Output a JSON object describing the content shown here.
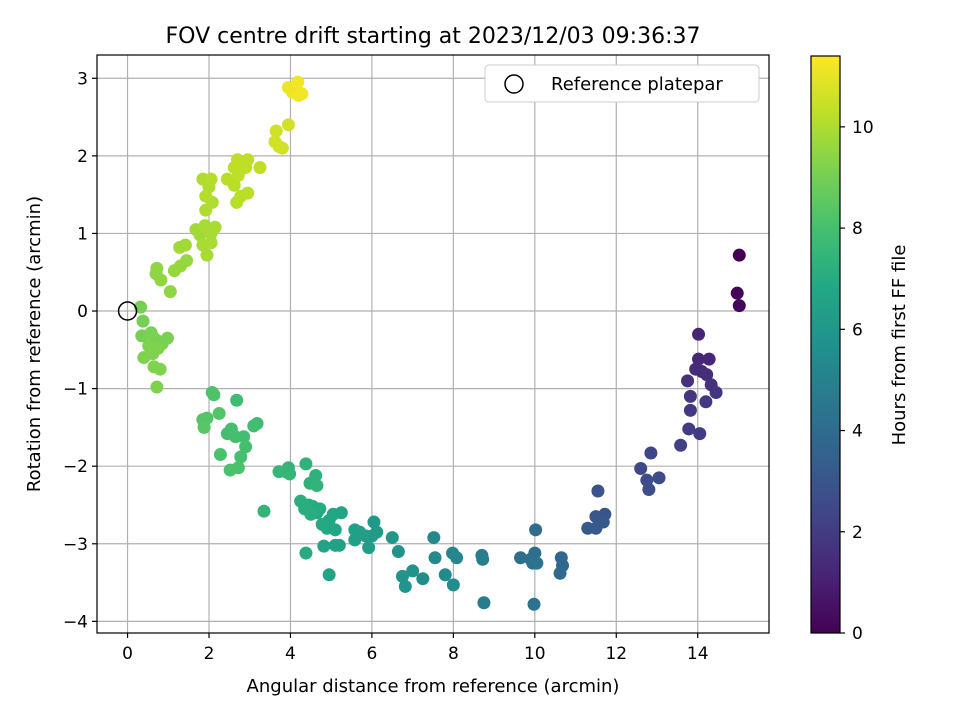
{
  "chart_data": {
    "type": "scatter",
    "title": "FOV centre drift starting at 2023/12/03 09:36:37",
    "xlabel": "Angular distance from reference (arcmin)",
    "ylabel": "Rotation from reference (arcmin)",
    "xlim": [
      -0.75,
      15.75
    ],
    "ylim": [
      -4.15,
      3.3
    ],
    "xticks": [
      0,
      2,
      4,
      6,
      8,
      10,
      12,
      14
    ],
    "yticks": [
      -4,
      -3,
      -2,
      -1,
      0,
      1,
      2,
      3
    ],
    "grid": true,
    "legend": {
      "position": "upper-right",
      "entries": [
        {
          "label": "Reference platepar",
          "marker": "open-circle"
        }
      ]
    },
    "reference_point": {
      "x": 0.0,
      "y": 0.0
    },
    "colorbar": {
      "label": "Hours from first FF file",
      "range": [
        0,
        11.4
      ],
      "ticks": [
        0,
        2,
        4,
        6,
        8,
        10
      ],
      "colormap": "viridis"
    },
    "series": [
      {
        "color_values_in": "hours",
        "points": [
          {
            "x": 15.02,
            "y": 0.72,
            "hours": 0.0
          },
          {
            "x": 14.97,
            "y": 0.23,
            "hours": 0.1
          },
          {
            "x": 15.02,
            "y": 0.07,
            "hours": 0.2
          },
          {
            "x": 14.02,
            "y": -0.3,
            "hours": 1.2
          },
          {
            "x": 14.02,
            "y": -0.62,
            "hours": 1.3
          },
          {
            "x": 14.28,
            "y": -0.62,
            "hours": 1.3
          },
          {
            "x": 13.95,
            "y": -0.75,
            "hours": 1.4
          },
          {
            "x": 14.1,
            "y": -0.78,
            "hours": 1.4
          },
          {
            "x": 14.22,
            "y": -0.82,
            "hours": 1.5
          },
          {
            "x": 13.75,
            "y": -0.9,
            "hours": 1.6
          },
          {
            "x": 14.33,
            "y": -0.95,
            "hours": 1.6
          },
          {
            "x": 14.45,
            "y": -1.05,
            "hours": 1.7
          },
          {
            "x": 13.82,
            "y": -1.1,
            "hours": 1.8
          },
          {
            "x": 14.2,
            "y": -1.17,
            "hours": 1.8
          },
          {
            "x": 13.82,
            "y": -1.28,
            "hours": 1.9
          },
          {
            "x": 13.78,
            "y": -1.52,
            "hours": 2.0
          },
          {
            "x": 14.05,
            "y": -1.58,
            "hours": 2.0
          },
          {
            "x": 13.58,
            "y": -1.73,
            "hours": 2.1
          },
          {
            "x": 12.85,
            "y": -1.83,
            "hours": 2.4
          },
          {
            "x": 12.6,
            "y": -2.03,
            "hours": 2.5
          },
          {
            "x": 12.75,
            "y": -2.18,
            "hours": 2.6
          },
          {
            "x": 13.05,
            "y": -2.15,
            "hours": 2.6
          },
          {
            "x": 12.8,
            "y": -2.3,
            "hours": 2.7
          },
          {
            "x": 11.55,
            "y": -2.32,
            "hours": 2.9
          },
          {
            "x": 11.72,
            "y": -2.62,
            "hours": 3.0
          },
          {
            "x": 11.5,
            "y": -2.65,
            "hours": 3.1
          },
          {
            "x": 11.68,
            "y": -2.72,
            "hours": 3.1
          },
          {
            "x": 11.3,
            "y": -2.8,
            "hours": 3.2
          },
          {
            "x": 11.5,
            "y": -2.8,
            "hours": 3.2
          },
          {
            "x": 10.02,
            "y": -2.82,
            "hours": 4.0
          },
          {
            "x": 10.65,
            "y": -3.18,
            "hours": 3.8
          },
          {
            "x": 10.68,
            "y": -3.28,
            "hours": 3.8
          },
          {
            "x": 10.62,
            "y": -3.38,
            "hours": 3.9
          },
          {
            "x": 9.65,
            "y": -3.18,
            "hours": 4.2
          },
          {
            "x": 9.9,
            "y": -3.2,
            "hours": 4.2
          },
          {
            "x": 10.0,
            "y": -3.12,
            "hours": 4.2
          },
          {
            "x": 9.95,
            "y": -3.25,
            "hours": 4.3
          },
          {
            "x": 10.05,
            "y": -3.25,
            "hours": 4.3
          },
          {
            "x": 9.98,
            "y": -3.78,
            "hours": 4.4
          },
          {
            "x": 8.7,
            "y": -3.15,
            "hours": 4.8
          },
          {
            "x": 8.72,
            "y": -3.2,
            "hours": 4.8
          },
          {
            "x": 8.75,
            "y": -3.76,
            "hours": 4.7
          },
          {
            "x": 7.52,
            "y": -2.92,
            "hours": 5.3
          },
          {
            "x": 7.98,
            "y": -3.12,
            "hours": 5.2
          },
          {
            "x": 8.08,
            "y": -3.18,
            "hours": 5.2
          },
          {
            "x": 7.55,
            "y": -3.18,
            "hours": 5.3
          },
          {
            "x": 7.8,
            "y": -3.4,
            "hours": 5.4
          },
          {
            "x": 7.25,
            "y": -3.45,
            "hours": 5.5
          },
          {
            "x": 8.0,
            "y": -3.53,
            "hours": 5.5
          },
          {
            "x": 6.65,
            "y": -3.1,
            "hours": 5.8
          },
          {
            "x": 7.0,
            "y": -3.35,
            "hours": 5.8
          },
          {
            "x": 6.75,
            "y": -3.42,
            "hours": 5.9
          },
          {
            "x": 6.82,
            "y": -3.55,
            "hours": 5.9
          },
          {
            "x": 6.5,
            "y": -2.92,
            "hours": 6.0
          },
          {
            "x": 6.05,
            "y": -2.72,
            "hours": 6.1
          },
          {
            "x": 6.12,
            "y": -2.85,
            "hours": 6.2
          },
          {
            "x": 6.0,
            "y": -2.9,
            "hours": 6.2
          },
          {
            "x": 5.85,
            "y": -2.9,
            "hours": 6.3
          },
          {
            "x": 5.7,
            "y": -2.85,
            "hours": 6.3
          },
          {
            "x": 5.58,
            "y": -2.82,
            "hours": 6.4
          },
          {
            "x": 5.58,
            "y": -2.95,
            "hours": 6.4
          },
          {
            "x": 5.92,
            "y": -3.05,
            "hours": 6.3
          },
          {
            "x": 5.2,
            "y": -3.02,
            "hours": 6.5
          },
          {
            "x": 5.1,
            "y": -3.02,
            "hours": 6.5
          },
          {
            "x": 4.82,
            "y": -3.03,
            "hours": 6.6
          },
          {
            "x": 4.95,
            "y": -3.4,
            "hours": 6.6
          },
          {
            "x": 5.25,
            "y": -2.6,
            "hours": 6.7
          },
          {
            "x": 5.05,
            "y": -2.62,
            "hours": 6.7
          },
          {
            "x": 4.95,
            "y": -2.7,
            "hours": 6.8
          },
          {
            "x": 4.9,
            "y": -2.8,
            "hours": 6.8
          },
          {
            "x": 5.1,
            "y": -2.82,
            "hours": 6.8
          },
          {
            "x": 4.78,
            "y": -2.75,
            "hours": 6.9
          },
          {
            "x": 4.65,
            "y": -2.6,
            "hours": 6.9
          },
          {
            "x": 4.55,
            "y": -2.52,
            "hours": 7.0
          },
          {
            "x": 4.72,
            "y": -2.55,
            "hours": 7.0
          },
          {
            "x": 4.45,
            "y": -2.5,
            "hours": 7.0
          },
          {
            "x": 4.35,
            "y": -2.55,
            "hours": 7.1
          },
          {
            "x": 4.25,
            "y": -2.45,
            "hours": 7.1
          },
          {
            "x": 4.5,
            "y": -2.62,
            "hours": 7.1
          },
          {
            "x": 4.38,
            "y": -3.12,
            "hours": 7.0
          },
          {
            "x": 4.38,
            "y": -1.97,
            "hours": 7.3
          },
          {
            "x": 4.62,
            "y": -2.12,
            "hours": 7.3
          },
          {
            "x": 4.48,
            "y": -2.22,
            "hours": 7.3
          },
          {
            "x": 4.65,
            "y": -2.25,
            "hours": 7.4
          },
          {
            "x": 3.95,
            "y": -2.02,
            "hours": 7.4
          },
          {
            "x": 3.88,
            "y": -2.07,
            "hours": 7.5
          },
          {
            "x": 3.72,
            "y": -2.07,
            "hours": 7.5
          },
          {
            "x": 3.98,
            "y": -2.1,
            "hours": 7.5
          },
          {
            "x": 3.35,
            "y": -2.58,
            "hours": 7.4
          },
          {
            "x": 2.68,
            "y": -1.15,
            "hours": 7.8
          },
          {
            "x": 3.18,
            "y": -1.45,
            "hours": 7.8
          },
          {
            "x": 3.1,
            "y": -1.48,
            "hours": 7.9
          },
          {
            "x": 2.85,
            "y": -1.62,
            "hours": 7.9
          },
          {
            "x": 2.65,
            "y": -1.62,
            "hours": 8.0
          },
          {
            "x": 2.55,
            "y": -1.52,
            "hours": 8.0
          },
          {
            "x": 2.45,
            "y": -1.58,
            "hours": 8.0
          },
          {
            "x": 2.9,
            "y": -1.75,
            "hours": 8.0
          },
          {
            "x": 2.78,
            "y": -1.88,
            "hours": 8.0
          },
          {
            "x": 2.28,
            "y": -1.85,
            "hours": 8.1
          },
          {
            "x": 2.72,
            "y": -2.02,
            "hours": 8.1
          },
          {
            "x": 2.52,
            "y": -2.05,
            "hours": 8.1
          },
          {
            "x": 2.08,
            "y": -1.05,
            "hours": 8.2
          },
          {
            "x": 2.12,
            "y": -1.08,
            "hours": 8.2
          },
          {
            "x": 2.25,
            "y": -1.32,
            "hours": 8.3
          },
          {
            "x": 1.95,
            "y": -1.38,
            "hours": 8.3
          },
          {
            "x": 1.85,
            "y": -1.4,
            "hours": 8.3
          },
          {
            "x": 1.88,
            "y": -1.5,
            "hours": 8.4
          },
          {
            "x": 0.32,
            "y": 0.05,
            "hours": 9.0
          },
          {
            "x": 0.38,
            "y": -0.13,
            "hours": 9.0
          },
          {
            "x": 0.35,
            "y": -0.32,
            "hours": 9.0
          },
          {
            "x": 0.58,
            "y": -0.28,
            "hours": 9.1
          },
          {
            "x": 0.65,
            "y": -0.35,
            "hours": 9.1
          },
          {
            "x": 0.72,
            "y": -0.38,
            "hours": 9.1
          },
          {
            "x": 0.98,
            "y": -0.35,
            "hours": 9.1
          },
          {
            "x": 0.85,
            "y": -0.42,
            "hours": 9.1
          },
          {
            "x": 0.52,
            "y": -0.45,
            "hours": 9.2
          },
          {
            "x": 0.62,
            "y": -0.55,
            "hours": 9.2
          },
          {
            "x": 0.4,
            "y": -0.6,
            "hours": 9.2
          },
          {
            "x": 0.75,
            "y": -0.48,
            "hours": 9.2
          },
          {
            "x": 0.65,
            "y": -0.72,
            "hours": 9.2
          },
          {
            "x": 0.8,
            "y": -0.75,
            "hours": 9.2
          },
          {
            "x": 0.72,
            "y": -0.98,
            "hours": 9.2
          },
          {
            "x": 0.72,
            "y": 0.55,
            "hours": 9.5
          },
          {
            "x": 0.7,
            "y": 0.48,
            "hours": 9.5
          },
          {
            "x": 0.82,
            "y": 0.4,
            "hours": 9.5
          },
          {
            "x": 1.05,
            "y": 0.25,
            "hours": 9.5
          },
          {
            "x": 1.15,
            "y": 0.52,
            "hours": 9.6
          },
          {
            "x": 1.3,
            "y": 0.58,
            "hours": 9.6
          },
          {
            "x": 1.45,
            "y": 0.65,
            "hours": 9.6
          },
          {
            "x": 1.28,
            "y": 0.82,
            "hours": 9.8
          },
          {
            "x": 1.42,
            "y": 0.85,
            "hours": 9.8
          },
          {
            "x": 1.68,
            "y": 1.05,
            "hours": 9.8
          },
          {
            "x": 1.78,
            "y": 0.98,
            "hours": 9.8
          },
          {
            "x": 1.9,
            "y": 1.1,
            "hours": 9.9
          },
          {
            "x": 2.05,
            "y": 1.0,
            "hours": 9.9
          },
          {
            "x": 2.15,
            "y": 1.08,
            "hours": 9.9
          },
          {
            "x": 1.85,
            "y": 0.85,
            "hours": 9.9
          },
          {
            "x": 1.95,
            "y": 0.72,
            "hours": 9.9
          },
          {
            "x": 2.05,
            "y": 0.88,
            "hours": 9.9
          },
          {
            "x": 1.92,
            "y": 1.3,
            "hours": 10.0
          },
          {
            "x": 2.08,
            "y": 1.4,
            "hours": 10.0
          },
          {
            "x": 2.0,
            "y": 1.6,
            "hours": 10.0
          },
          {
            "x": 1.85,
            "y": 1.7,
            "hours": 10.0
          },
          {
            "x": 2.05,
            "y": 1.7,
            "hours": 10.1
          },
          {
            "x": 1.92,
            "y": 1.48,
            "hours": 10.1
          },
          {
            "x": 2.45,
            "y": 1.7,
            "hours": 10.2
          },
          {
            "x": 2.62,
            "y": 1.62,
            "hours": 10.2
          },
          {
            "x": 2.78,
            "y": 1.48,
            "hours": 10.2
          },
          {
            "x": 2.68,
            "y": 1.4,
            "hours": 10.2
          },
          {
            "x": 2.95,
            "y": 1.52,
            "hours": 10.2
          },
          {
            "x": 2.72,
            "y": 1.75,
            "hours": 10.3
          },
          {
            "x": 2.9,
            "y": 1.85,
            "hours": 10.3
          },
          {
            "x": 2.62,
            "y": 1.85,
            "hours": 10.3
          },
          {
            "x": 2.7,
            "y": 1.95,
            "hours": 10.3
          },
          {
            "x": 2.95,
            "y": 1.95,
            "hours": 10.3
          },
          {
            "x": 3.25,
            "y": 1.85,
            "hours": 10.3
          },
          {
            "x": 3.62,
            "y": 2.18,
            "hours": 10.6
          },
          {
            "x": 3.72,
            "y": 2.12,
            "hours": 10.6
          },
          {
            "x": 3.8,
            "y": 2.1,
            "hours": 10.6
          },
          {
            "x": 3.65,
            "y": 2.32,
            "hours": 10.6
          },
          {
            "x": 3.95,
            "y": 2.4,
            "hours": 10.6
          },
          {
            "x": 3.95,
            "y": 2.88,
            "hours": 11.1
          },
          {
            "x": 4.05,
            "y": 2.82,
            "hours": 11.1
          },
          {
            "x": 4.15,
            "y": 2.85,
            "hours": 11.1
          },
          {
            "x": 4.2,
            "y": 2.78,
            "hours": 11.2
          },
          {
            "x": 4.28,
            "y": 2.8,
            "hours": 11.2
          },
          {
            "x": 4.18,
            "y": 2.95,
            "hours": 11.2
          }
        ]
      }
    ]
  }
}
